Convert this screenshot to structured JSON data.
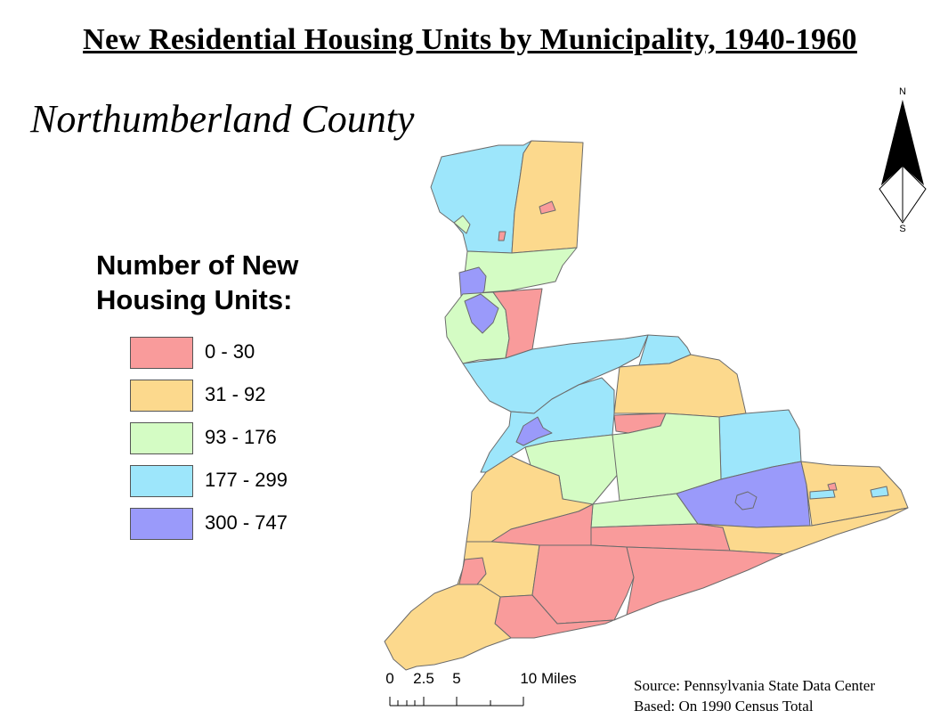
{
  "title": "New Residential Housing Units by Municipality, 1940-1960",
  "county_name": "Northumberland County",
  "legend": {
    "title_line1": "Number of New",
    "title_line2": "Housing Units:",
    "classes": [
      {
        "label": "0 - 30",
        "color": "#f99b9b"
      },
      {
        "label": "31 - 92",
        "color": "#fcd98d"
      },
      {
        "label": "93 - 176",
        "color": "#d4fcc4"
      },
      {
        "label": "177 - 299",
        "color": "#9de6fb"
      },
      {
        "label": "300 - 747",
        "color": "#9a9afa"
      }
    ]
  },
  "north_arrow": {
    "north_label": "N",
    "south_label": "S",
    "icon": "north-arrow-icon"
  },
  "scale_bar": {
    "labels": [
      "0",
      "2.5",
      "5",
      "10 Miles"
    ]
  },
  "source": {
    "line1": "Source: Pennsylvania State Data Center",
    "line2": "Based: On 1990 Census Total"
  }
}
